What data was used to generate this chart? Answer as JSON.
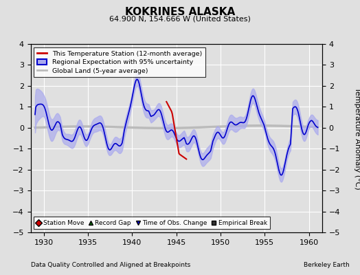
{
  "title": "KOKRINES ALASKA",
  "subtitle": "64.900 N, 154.666 W (United States)",
  "ylabel": "Temperature Anomaly (°C)",
  "xlabel_left": "Data Quality Controlled and Aligned at Breakpoints",
  "xlabel_right": "Berkeley Earth",
  "ylim": [
    -5,
    4
  ],
  "xlim": [
    1928.5,
    1961.5
  ],
  "xticks": [
    1930,
    1935,
    1940,
    1945,
    1950,
    1955,
    1960
  ],
  "yticks": [
    -5,
    -4,
    -3,
    -2,
    -1,
    0,
    1,
    2,
    3,
    4
  ],
  "bg_color": "#e0e0e0",
  "plot_bg_color": "#e0e0e0",
  "grid_color": "white",
  "regional_line_color": "#0000cc",
  "regional_fill_color": "#aaaaee",
  "station_line_color": "#cc0000",
  "global_land_color": "#bbbbbb",
  "legend_labels": [
    "This Temperature Station (12-month average)",
    "Regional Expectation with 95% uncertainty",
    "Global Land (5-year average)"
  ],
  "bottom_legend": [
    {
      "label": "Station Move",
      "color": "#cc0000",
      "marker": "D"
    },
    {
      "label": "Record Gap",
      "color": "#006600",
      "marker": "^"
    },
    {
      "label": "Time of Obs. Change",
      "color": "#0000cc",
      "marker": "v"
    },
    {
      "label": "Empirical Break",
      "color": "#333333",
      "marker": "s"
    }
  ]
}
